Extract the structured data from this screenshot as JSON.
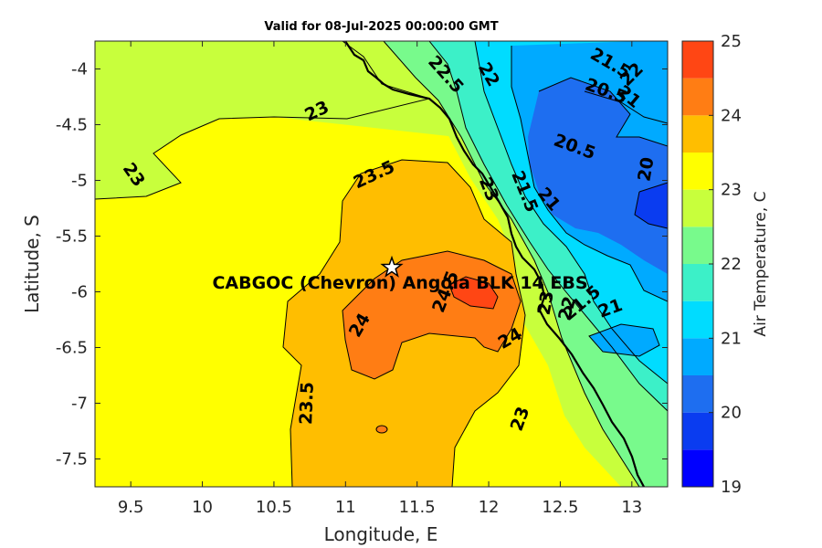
{
  "title": "Valid for 08-Jul-2025 00:00:00 GMT",
  "chart_data": {
    "type": "contour-map",
    "xlabel": "Longitude, E",
    "ylabel": "Latitude, S",
    "xlim": [
      9.25,
      13.25
    ],
    "ylim": [
      -7.75,
      -3.75
    ],
    "xticks": [
      {
        "v": 9.5,
        "t": "9.5"
      },
      {
        "v": 10,
        "t": "10"
      },
      {
        "v": 10.5,
        "t": "10.5"
      },
      {
        "v": 11,
        "t": "11"
      },
      {
        "v": 11.5,
        "t": "11.5"
      },
      {
        "v": 12,
        "t": "12"
      },
      {
        "v": 12.5,
        "t": "12.5"
      },
      {
        "v": 13,
        "t": "13"
      }
    ],
    "yticks": [
      {
        "v": -4,
        "t": "-4"
      },
      {
        "v": -4.5,
        "t": "-4.5"
      },
      {
        "v": -5,
        "t": "-5"
      },
      {
        "v": -5.5,
        "t": "-5.5"
      },
      {
        "v": -6,
        "t": "-6"
      },
      {
        "v": -6.5,
        "t": "-6.5"
      },
      {
        "v": -7,
        "t": "-7"
      },
      {
        "v": -7.5,
        "t": "-7.5"
      }
    ],
    "colorbar": {
      "label": "Air Temperature, C",
      "range": [
        19,
        25
      ],
      "ticks": [
        "19",
        "20",
        "21",
        "22",
        "23",
        "24",
        "25"
      ],
      "levels": [
        {
          "min": 19.0,
          "color": "#0000ff"
        },
        {
          "min": 19.5,
          "color": "#0a3cf0"
        },
        {
          "min": 20.0,
          "color": "#1e6ef0"
        },
        {
          "min": 20.5,
          "color": "#00aaff"
        },
        {
          "min": 21.0,
          "color": "#00dcff"
        },
        {
          "min": 21.5,
          "color": "#3cf0c8"
        },
        {
          "min": 22.0,
          "color": "#78fa8c"
        },
        {
          "min": 22.5,
          "color": "#c8ff3c"
        },
        {
          "min": 23.0,
          "color": "#ffff00"
        },
        {
          "min": 23.5,
          "color": "#ffbe00"
        },
        {
          "min": 24.0,
          "color": "#ff7d14"
        },
        {
          "min": 24.5,
          "color": "#ff4614"
        }
      ]
    },
    "contour_labels": [
      {
        "text": "23",
        "lon": 10.8,
        "lat": -4.38,
        "rot": -25
      },
      {
        "text": "23",
        "lon": 9.52,
        "lat": -4.95,
        "rot": 55
      },
      {
        "text": "22.5",
        "lon": 11.7,
        "lat": -4.05,
        "rot": 48
      },
      {
        "text": "22",
        "lon": 12.0,
        "lat": -4.05,
        "rot": 60
      },
      {
        "text": "21.5",
        "lon": 12.85,
        "lat": -3.95,
        "rot": 30
      },
      {
        "text": "22",
        "lon": 13.0,
        "lat": -4.05,
        "rot": -45
      },
      {
        "text": "20.5",
        "lon": 12.82,
        "lat": -4.2,
        "rot": 20
      },
      {
        "text": "21",
        "lon": 12.98,
        "lat": -4.25,
        "rot": 40
      },
      {
        "text": "20.5",
        "lon": 12.6,
        "lat": -4.7,
        "rot": 20
      },
      {
        "text": "20",
        "lon": 13.1,
        "lat": -4.9,
        "rot": -80
      },
      {
        "text": "23.5",
        "lon": 11.2,
        "lat": -4.95,
        "rot": -25
      },
      {
        "text": "23",
        "lon": 12.0,
        "lat": -5.08,
        "rot": 68
      },
      {
        "text": "21.5",
        "lon": 12.25,
        "lat": -5.1,
        "rot": 68
      },
      {
        "text": "21",
        "lon": 12.42,
        "lat": -5.17,
        "rot": 50
      },
      {
        "text": "24.5",
        "lon": 11.7,
        "lat": -6.0,
        "rot": -68
      },
      {
        "text": "24",
        "lon": 11.1,
        "lat": -6.3,
        "rot": -60
      },
      {
        "text": "24",
        "lon": 12.15,
        "lat": -6.42,
        "rot": -30
      },
      {
        "text": "23.5",
        "lon": 10.73,
        "lat": -7.0,
        "rot": -88
      },
      {
        "text": "23",
        "lon": 12.22,
        "lat": -7.14,
        "rot": -70
      },
      {
        "text": "21",
        "lon": 12.85,
        "lat": -6.15,
        "rot": -20
      },
      {
        "text": "21.5",
        "lon": 12.65,
        "lat": -6.1,
        "rot": -40
      },
      {
        "text": "22",
        "lon": 12.55,
        "lat": -6.15,
        "rot": -75
      },
      {
        "text": "23",
        "lon": 12.4,
        "lat": -6.1,
        "rot": -80
      }
    ],
    "marker": {
      "type": "star",
      "lon": 11.33,
      "lat": -5.8,
      "label": "CABGOC (Chevron) Angola BLK 14 EBS"
    }
  }
}
